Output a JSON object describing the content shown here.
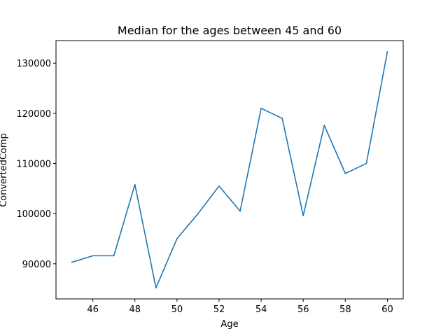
{
  "chart_data": {
    "type": "line",
    "title": "Median for the ages between 45 and 60",
    "xlabel": "Age",
    "ylabel": "ConvertedComp",
    "x": [
      45,
      46,
      47,
      48,
      49,
      50,
      51,
      52,
      53,
      54,
      55,
      56,
      57,
      58,
      59,
      60
    ],
    "series": [
      {
        "values": [
          90300,
          91600,
          91600,
          105800,
          85200,
          95000,
          100000,
          105500,
          100500,
          121000,
          119000,
          99600,
          117600,
          108000,
          110000,
          132300
        ],
        "color": "#1f77b4"
      }
    ],
    "xlim": [
      44.25,
      60.75
    ],
    "ylim": [
      83000,
      134500
    ],
    "xticks": [
      46,
      48,
      50,
      52,
      54,
      56,
      58,
      60
    ],
    "xtick_labels": [
      "46",
      "48",
      "50",
      "52",
      "54",
      "56",
      "58",
      "60"
    ],
    "yticks": [
      90000,
      100000,
      110000,
      120000,
      130000
    ],
    "ytick_labels": [
      "90000",
      "100000",
      "110000",
      "120000",
      "130000"
    ],
    "grid": false,
    "legend": "none"
  }
}
